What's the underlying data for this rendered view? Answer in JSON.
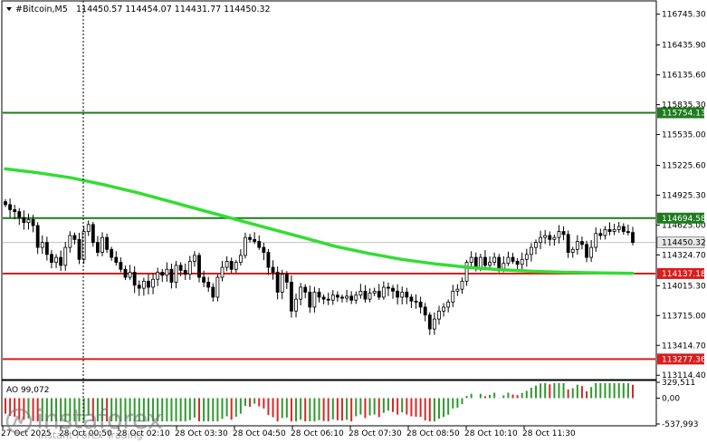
{
  "header": {
    "symbol": "#Bitcoin,M5",
    "ohlc": "114450.57 114454.07 114431.77 114450.32"
  },
  "price_axis": {
    "ticks": [
      {
        "label": "116745.30",
        "v": 116745.3
      },
      {
        "label": "116435.90",
        "v": 116435.9
      },
      {
        "label": "116135.60",
        "v": 116135.6
      },
      {
        "label": "115835.30",
        "v": 115835.3
      },
      {
        "label": "115535.00",
        "v": 115535.0
      },
      {
        "label": "115225.60",
        "v": 115225.6
      },
      {
        "label": "114925.30",
        "v": 114925.3
      },
      {
        "label": "114625.00",
        "v": 114625.0
      },
      {
        "label": "114324.70",
        "v": 114324.7
      },
      {
        "label": "114015.30",
        "v": 114015.3
      },
      {
        "label": "113715.00",
        "v": 113715.0
      },
      {
        "label": "113414.70",
        "v": 113414.7
      },
      {
        "label": "113114.40",
        "v": 113114.4
      }
    ],
    "min": 113080,
    "max": 116870
  },
  "levels": [
    {
      "label": "115754.13",
      "value": 115754.13,
      "color": "#1e7b1e"
    },
    {
      "label": "114694.58",
      "value": 114694.58,
      "color": "#1e7b1e"
    },
    {
      "label": "114137.18",
      "value": 114137.18,
      "color": "#d81e1e"
    },
    {
      "label": "113277.36",
      "value": 113277.36,
      "color": "#d81e1e"
    }
  ],
  "current_price": {
    "label": "114450.32",
    "value": 114450.32
  },
  "time_axis": {
    "labels": [
      "27 Oct 2025",
      "28 Oct 00:50",
      "28 Oct 02:10",
      "28 Oct 03:30",
      "28 Oct 04:50",
      "28 Oct 06:10",
      "28 Oct 07:30",
      "28 Oct 08:50",
      "28 Oct 10:10",
      "28 Oct 11:30"
    ]
  },
  "ao": {
    "title": "AO 99,072",
    "ticks": [
      {
        "label": "329,511",
        "v": 329.511
      },
      {
        "label": "0,00",
        "v": 0
      },
      {
        "label": "-537,993",
        "v": -537.993
      }
    ],
    "min": -537.993,
    "max": 329.511
  },
  "brand": {
    "name": "instaforex",
    "tagline": "Instant Forex Trading"
  },
  "colors": {
    "ma": "#33dd33",
    "green_level": "#1e7b1e",
    "red_level": "#d81e1e",
    "ao_up": "#2e9a2e",
    "ao_down": "#d62828"
  },
  "chart_data": {
    "type": "candlestick",
    "symbol": "#Bitcoin",
    "timeframe": "M5",
    "closes": [
      114830,
      114780,
      114760,
      114700,
      114650,
      114680,
      114620,
      114400,
      114450,
      114330,
      114250,
      114300,
      114220,
      114400,
      114520,
      114480,
      114280,
      114560,
      114630,
      114450,
      114350,
      114500,
      114380,
      114300,
      114250,
      114180,
      114100,
      114150,
      114020,
      113990,
      114060,
      114000,
      114080,
      114150,
      114120,
      114180,
      114050,
      114220,
      114170,
      114130,
      114260,
      114320,
      114100,
      114050,
      114000,
      113900,
      114100,
      114200,
      114260,
      114180,
      114250,
      114320,
      114500,
      114480,
      114460,
      114400,
      114350,
      114200,
      114150,
      113950,
      114130,
      114050,
      113760,
      113880,
      114000,
      113950,
      113800,
      113950,
      113900,
      113880,
      113870,
      113920,
      113900,
      113890,
      113910,
      113870,
      113920,
      113960,
      113880,
      113940,
      113960,
      113900,
      114000,
      113990,
      113960,
      113900,
      113950,
      113900,
      113860,
      113850,
      113800,
      113720,
      113580,
      113680,
      113760,
      113800,
      113850,
      113960,
      113980,
      114060,
      114250,
      114300,
      114200,
      114300,
      114220,
      114250,
      114300,
      114180,
      114240,
      114300,
      114260,
      114230,
      114280,
      114330,
      114400,
      114450,
      114500,
      114520,
      114480,
      114500,
      114560,
      114530,
      114350,
      114380,
      114460,
      114430,
      114300,
      114400,
      114540,
      114520,
      114580,
      114560,
      114580,
      114610,
      114560,
      114550,
      114450
    ],
    "ma": [
      115190,
      115150,
      115100,
      115030,
      114950,
      114860,
      114770,
      114680,
      114590,
      114500,
      114410,
      114340,
      114280,
      114235,
      114200,
      114175,
      114160,
      114150,
      114143,
      114140
    ],
    "levels": [
      115754.13,
      114694.58,
      114137.18,
      113277.36
    ],
    "last": 114450.32,
    "ylim": [
      113080,
      116870
    ]
  }
}
